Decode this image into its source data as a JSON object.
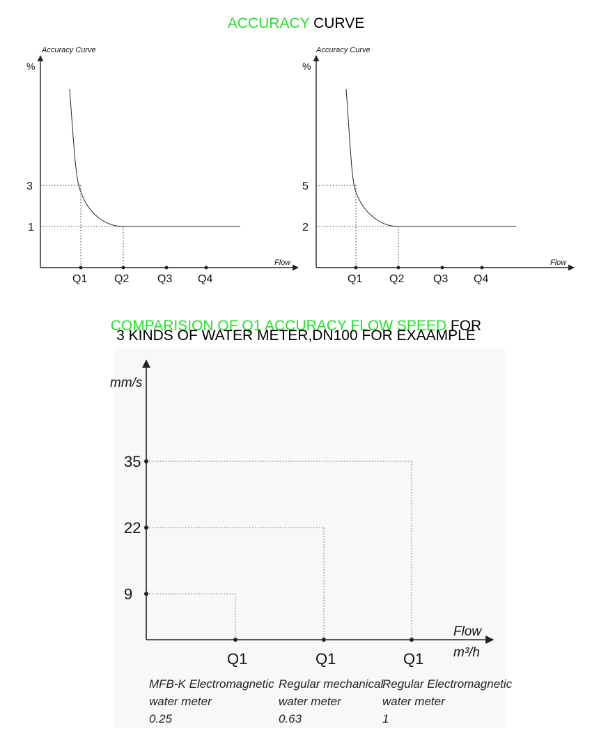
{
  "titles": {
    "top_green": "ACCURACY",
    "top_black": " CURVE",
    "mid_green": "COMPARISION OF Q1 ACCURACY FLOW SPEED",
    "mid_black": " FOR",
    "mid_line2": "3 KINDS OF WATER METER,DN100  FOR EXAAMPLE"
  },
  "chart_data": [
    {
      "type": "line",
      "title": "Accuracy Curve",
      "ylabel": "%",
      "xlabel": "Flow",
      "categories": [
        "Q1",
        "Q2",
        "Q3",
        "Q4"
      ],
      "yticks": [
        3,
        1
      ],
      "marked": {
        "at_Q1": 3,
        "at_Q2": 1
      }
    },
    {
      "type": "line",
      "title": "Accuracy Curve",
      "ylabel": "%",
      "xlabel": "Flow",
      "categories": [
        "Q1",
        "Q2",
        "Q3",
        "Q4"
      ],
      "yticks": [
        5,
        2
      ],
      "marked": {
        "at_Q1": 5,
        "at_Q2": 2
      }
    },
    {
      "type": "bar",
      "ylabel": "mm/s",
      "xlabel": "Flow",
      "xunit": "m³/h",
      "yticks": [
        35,
        22,
        9
      ],
      "series": [
        {
          "tick": "Q1",
          "meter_line1": "MFB-K Electromagnetic",
          "meter_line2": "water meter",
          "flow": "0.25",
          "speed": 9
        },
        {
          "tick": "Q1",
          "meter_line1": "Regular mechanical",
          "meter_line2": "water meter",
          "flow": "0.63",
          "speed": 22
        },
        {
          "tick": "Q1",
          "meter_line1": "Regular Electromagnetic",
          "meter_line2": "water meter",
          "flow": "1",
          "speed": 35
        }
      ],
      "ylim": [
        0,
        45
      ]
    }
  ]
}
